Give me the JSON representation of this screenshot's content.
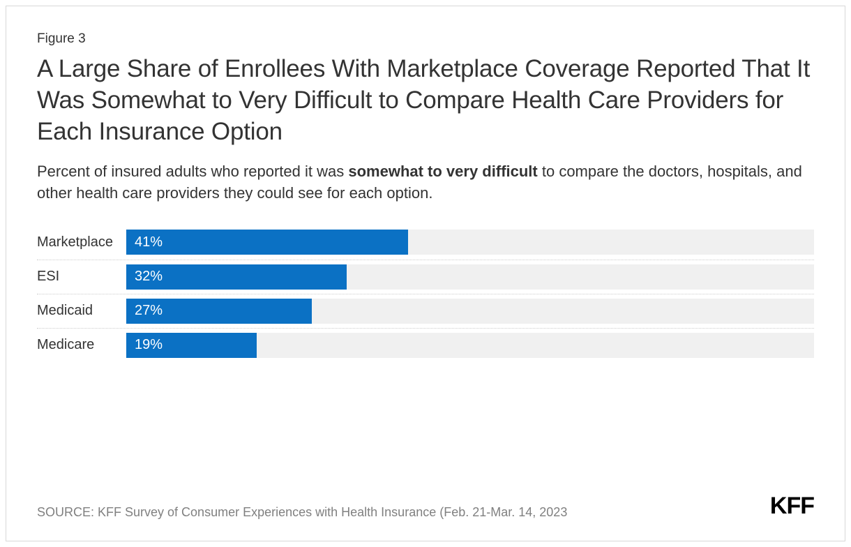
{
  "figure_number": "Figure 3",
  "title": "A Large Share of Enrollees With Marketplace Coverage Reported That It Was Somewhat to Very Difficult to Compare Health Care Providers for Each Insurance Option",
  "subtitle_before": "Percent of insured adults who reported it was ",
  "subtitle_bold": "somewhat to very difficult",
  "subtitle_after": " to compare the doctors, hospitals, and other health care providers they could see for each option.",
  "chart": {
    "type": "bar-horizontal",
    "bar_color": "#0b71c4",
    "track_color": "#f0f0f0",
    "text_color": "#333333",
    "value_text_color": "#ffffff",
    "max_value": 100,
    "bars": [
      {
        "label": "Marketplace",
        "value": 41,
        "display": "41%"
      },
      {
        "label": "ESI",
        "value": 32,
        "display": "32%"
      },
      {
        "label": "Medicaid",
        "value": 27,
        "display": "27%"
      },
      {
        "label": "Medicare",
        "value": 19,
        "display": "19%"
      }
    ]
  },
  "source": "SOURCE: KFF Survey of Consumer Experiences with Health Insurance (Feb. 21-Mar. 14, 2023",
  "logo": "KFF"
}
